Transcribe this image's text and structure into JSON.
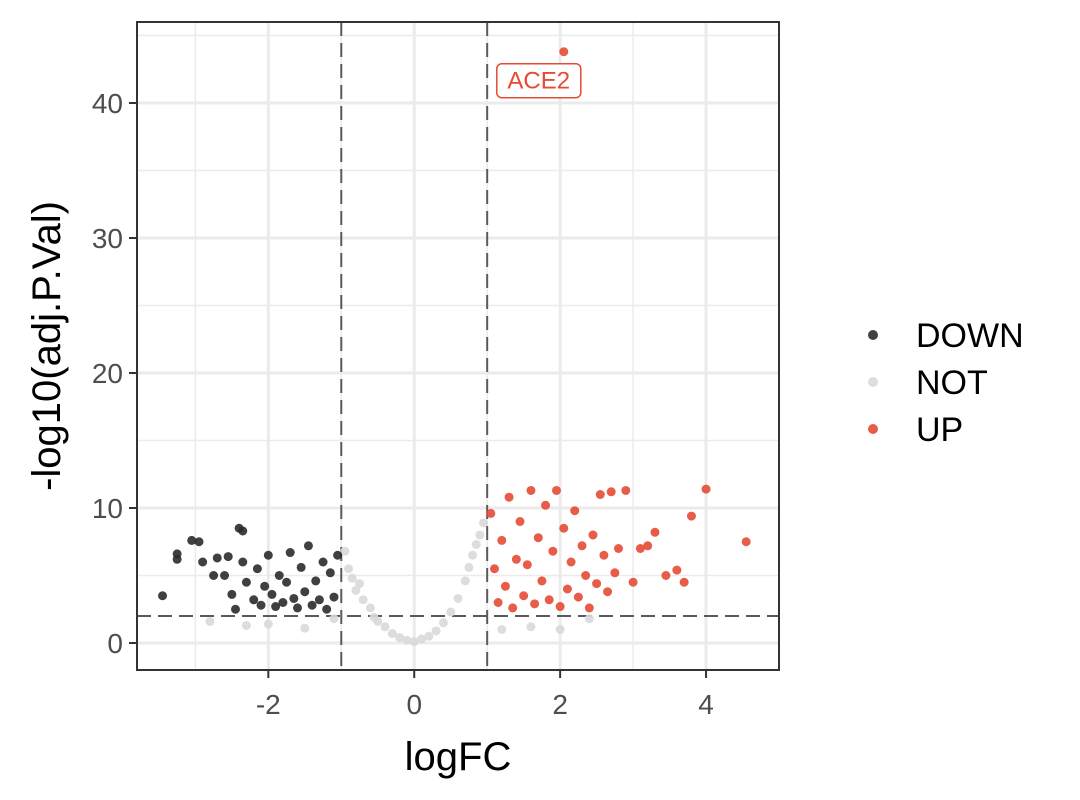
{
  "chart_data": {
    "type": "scatter",
    "title": "",
    "xlabel": "logFC",
    "ylabel": "-log10(adj.P.Val)",
    "xlim": [
      -3.8,
      5.0
    ],
    "ylim": [
      -2.0,
      46.0
    ],
    "x_ticks": [
      -2,
      0,
      2,
      4
    ],
    "x_tick_labels": [
      "-2",
      "0",
      "2",
      "4"
    ],
    "y_ticks": [
      0,
      10,
      20,
      30,
      40
    ],
    "y_tick_labels": [
      "0",
      "10",
      "20",
      "30",
      "40"
    ],
    "grid": true,
    "legend_position": "right",
    "thresholds": {
      "logFC": [
        -1,
        1
      ],
      "neg_log10_adj_p": 2
    },
    "series": [
      {
        "name": "DOWN",
        "color": "#2b2b2b",
        "points": [
          [
            -3.45,
            3.5
          ],
          [
            -3.25,
            6.2
          ],
          [
            -3.25,
            6.6
          ],
          [
            -3.05,
            7.6
          ],
          [
            -2.95,
            7.5
          ],
          [
            -2.9,
            6.0
          ],
          [
            -2.75,
            5.0
          ],
          [
            -2.7,
            6.3
          ],
          [
            -2.6,
            5.0
          ],
          [
            -2.55,
            6.4
          ],
          [
            -2.5,
            3.6
          ],
          [
            -2.45,
            2.5
          ],
          [
            -2.4,
            8.5
          ],
          [
            -2.35,
            8.3
          ],
          [
            -2.35,
            6.0
          ],
          [
            -2.3,
            4.5
          ],
          [
            -2.2,
            3.2
          ],
          [
            -2.15,
            5.5
          ],
          [
            -2.1,
            2.8
          ],
          [
            -2.05,
            4.2
          ],
          [
            -2.0,
            6.5
          ],
          [
            -1.95,
            3.6
          ],
          [
            -1.9,
            2.7
          ],
          [
            -1.85,
            5.0
          ],
          [
            -1.8,
            3.0
          ],
          [
            -1.75,
            4.5
          ],
          [
            -1.7,
            6.7
          ],
          [
            -1.65,
            3.3
          ],
          [
            -1.6,
            2.6
          ],
          [
            -1.55,
            5.6
          ],
          [
            -1.5,
            3.8
          ],
          [
            -1.45,
            7.2
          ],
          [
            -1.4,
            2.8
          ],
          [
            -1.35,
            4.6
          ],
          [
            -1.3,
            3.2
          ],
          [
            -1.25,
            6.0
          ],
          [
            -1.2,
            2.5
          ],
          [
            -1.15,
            5.2
          ],
          [
            -1.1,
            3.4
          ],
          [
            -1.05,
            6.5
          ]
        ]
      },
      {
        "name": "NOT",
        "color": "#d9d9d9",
        "points": [
          [
            -2.8,
            1.6
          ],
          [
            -2.3,
            1.3
          ],
          [
            -2.0,
            1.4
          ],
          [
            -1.5,
            1.1
          ],
          [
            -1.1,
            1.8
          ],
          [
            -0.95,
            6.8
          ],
          [
            -0.9,
            5.5
          ],
          [
            -0.85,
            4.8
          ],
          [
            -0.8,
            3.9
          ],
          [
            -0.75,
            4.4
          ],
          [
            -0.7,
            3.2
          ],
          [
            -0.6,
            2.6
          ],
          [
            -0.55,
            1.9
          ],
          [
            -0.5,
            1.6
          ],
          [
            -0.4,
            1.2
          ],
          [
            -0.3,
            0.7
          ],
          [
            -0.2,
            0.4
          ],
          [
            -0.1,
            0.2
          ],
          [
            0.0,
            0.1
          ],
          [
            0.1,
            0.3
          ],
          [
            0.2,
            0.5
          ],
          [
            0.3,
            0.9
          ],
          [
            0.4,
            1.5
          ],
          [
            0.5,
            2.3
          ],
          [
            0.6,
            3.3
          ],
          [
            0.7,
            4.6
          ],
          [
            0.75,
            5.6
          ],
          [
            0.8,
            6.5
          ],
          [
            0.85,
            7.3
          ],
          [
            0.9,
            8.0
          ],
          [
            0.95,
            8.9
          ],
          [
            1.2,
            1.0
          ],
          [
            1.6,
            1.2
          ],
          [
            2.0,
            1.0
          ],
          [
            2.4,
            1.8
          ]
        ]
      },
      {
        "name": "UP",
        "color": "#e64b35",
        "points": [
          [
            1.05,
            9.6
          ],
          [
            1.1,
            5.5
          ],
          [
            1.15,
            3.0
          ],
          [
            1.2,
            7.6
          ],
          [
            1.25,
            4.2
          ],
          [
            1.3,
            10.8
          ],
          [
            1.35,
            2.6
          ],
          [
            1.4,
            6.2
          ],
          [
            1.45,
            9.0
          ],
          [
            1.5,
            3.5
          ],
          [
            1.55,
            5.8
          ],
          [
            1.6,
            11.3
          ],
          [
            1.65,
            2.9
          ],
          [
            1.7,
            7.8
          ],
          [
            1.75,
            4.6
          ],
          [
            1.8,
            10.2
          ],
          [
            1.85,
            3.2
          ],
          [
            1.9,
            6.8
          ],
          [
            1.95,
            11.3
          ],
          [
            2.0,
            2.7
          ],
          [
            2.05,
            8.5
          ],
          [
            2.1,
            4.0
          ],
          [
            2.15,
            6.0
          ],
          [
            2.2,
            9.8
          ],
          [
            2.25,
            3.4
          ],
          [
            2.3,
            7.2
          ],
          [
            2.35,
            5.0
          ],
          [
            2.4,
            2.6
          ],
          [
            2.45,
            8.0
          ],
          [
            2.5,
            4.4
          ],
          [
            2.55,
            11.0
          ],
          [
            2.6,
            6.5
          ],
          [
            2.65,
            3.8
          ],
          [
            2.7,
            11.2
          ],
          [
            2.75,
            5.2
          ],
          [
            2.8,
            7.0
          ],
          [
            2.9,
            11.3
          ],
          [
            3.0,
            4.5
          ],
          [
            3.1,
            7.0
          ],
          [
            3.2,
            7.2
          ],
          [
            3.3,
            8.2
          ],
          [
            3.45,
            5.0
          ],
          [
            3.6,
            5.4
          ],
          [
            3.7,
            4.5
          ],
          [
            3.8,
            9.4
          ],
          [
            4.0,
            11.4
          ],
          [
            4.55,
            7.5
          ],
          [
            2.05,
            43.8
          ]
        ]
      }
    ],
    "annotations": [
      {
        "text": "ACE2",
        "x": 2.05,
        "y": 43.8,
        "color": "#e64b35"
      }
    ]
  }
}
